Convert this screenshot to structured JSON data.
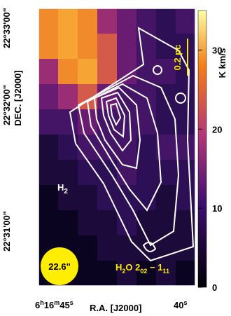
{
  "axes": {
    "y_label": "DEC. [J2000]",
    "x_label": "R.A. [J2000]",
    "y_ticks": [
      "22°33'00\"",
      "22°32'00\"",
      "22°31'00\""
    ],
    "x_ticks": [
      [
        "6",
        "h",
        "16",
        "m",
        "45",
        "s"
      ],
      [
        "40",
        "s"
      ]
    ]
  },
  "colorbar": {
    "label": "K km/s",
    "lim": [
      0,
      35
    ],
    "ticks": [
      0,
      10,
      20,
      30
    ]
  },
  "annotations": {
    "species": [
      "H",
      "2"
    ],
    "line": [
      "H",
      "2",
      "O 2",
      "02",
      " − 1",
      "11"
    ],
    "scale": "0.2 pc",
    "beam": "22.6\""
  }
}
